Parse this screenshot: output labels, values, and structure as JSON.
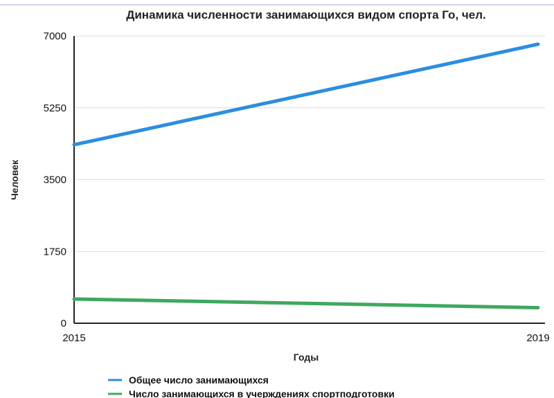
{
  "chart_data": {
    "type": "line",
    "title": "Динамика численности занимающихся видом спорта Го, чел.",
    "xlabel": "Годы",
    "ylabel": "Человек",
    "x": [
      "2015",
      "2019"
    ],
    "ylim": [
      0,
      7000
    ],
    "yticks": [
      "0",
      "1750",
      "3500",
      "5250",
      "7000"
    ],
    "grid": true,
    "legend": "bottom",
    "series": [
      {
        "name": "Общее число занимающихся",
        "values": [
          4350,
          6800
        ],
        "color": "#2b8ee0"
      },
      {
        "name": "Число занимающихся в учерждениях спортподготовки",
        "values": [
          590,
          380
        ],
        "color": "#3fa860"
      }
    ]
  }
}
